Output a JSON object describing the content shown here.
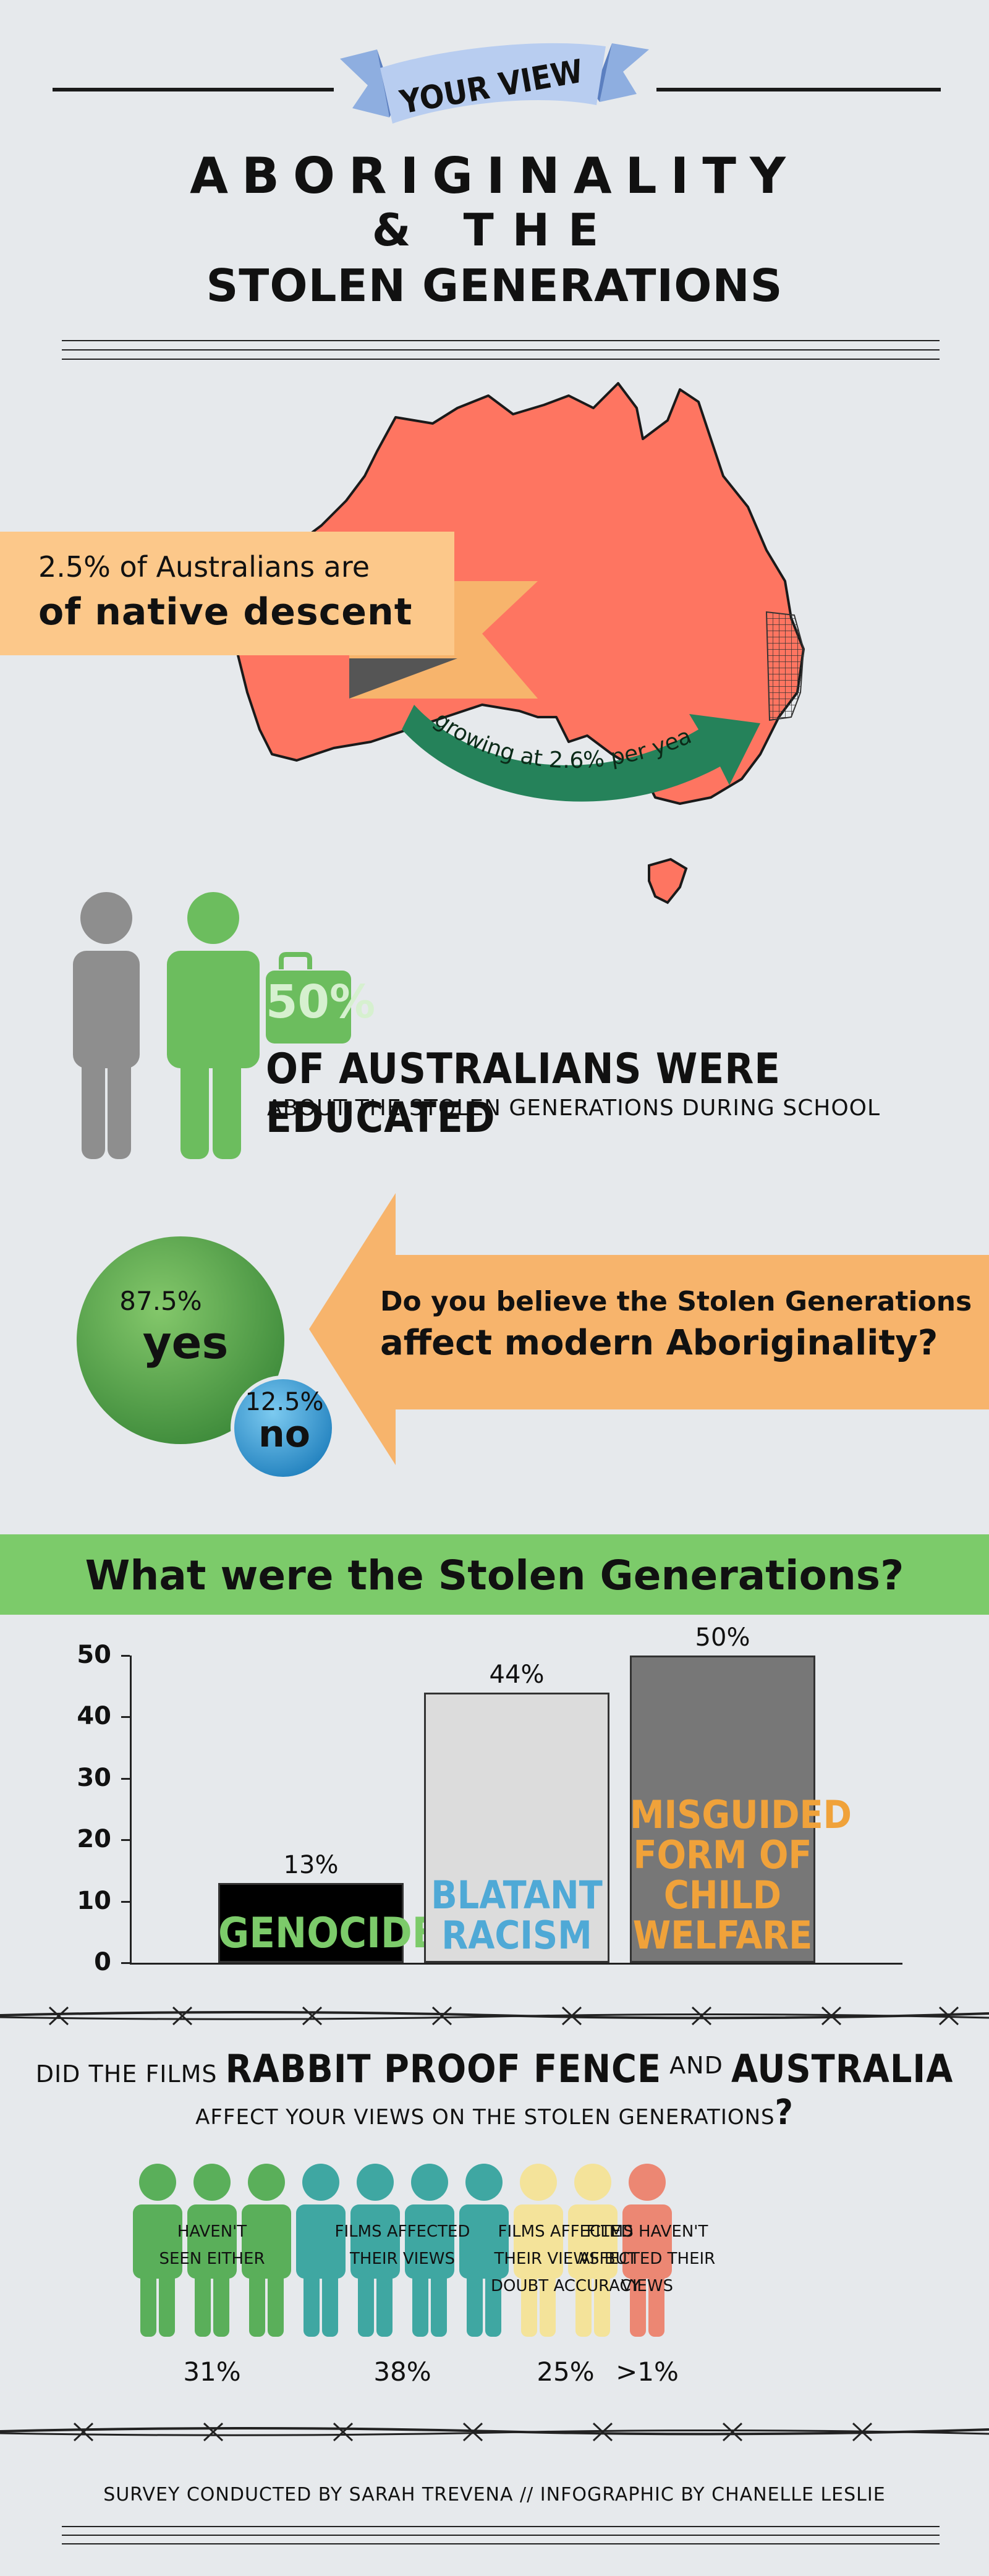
{
  "header": {
    "ribbon": "YOUR VIEW",
    "title_line1": "ABORIGINALITY",
    "title_line2": "& THE",
    "title_line3": "STOLEN GENERATIONS"
  },
  "native": {
    "small": "2.5% of Australians are",
    "big": "of native descent",
    "growth": "growing at 2.6% per year"
  },
  "education": {
    "percent": "50%",
    "line1": "OF AUSTRALIANS WERE EDUCATED",
    "line2": "ABOUT THE STOLEN GENERATIONS DURING SCHOOL"
  },
  "question": {
    "line1": "Do you believe the Stolen Generations",
    "line2": "affect modern Aboriginality?",
    "yes_pct": "87.5%",
    "yes_label": "yes",
    "no_pct": "12.5%",
    "no_label": "no"
  },
  "banner": "What were the Stolen Generations?",
  "chart_data": {
    "type": "bar",
    "categories": [
      "GENOCIDE",
      "BLATANT RACISM",
      "MISGUIDED FORM OF CHILD WELFARE"
    ],
    "values": [
      13,
      44,
      50
    ],
    "data_labels": [
      "13%",
      "44%",
      "50%"
    ],
    "category_lines": [
      [
        "GENOCIDE"
      ],
      [
        "BLATANT",
        "RACISM"
      ],
      [
        "MISGUIDED",
        "FORM OF",
        "CHILD",
        "WELFARE"
      ]
    ],
    "bar_colors": [
      "#000000",
      "#dcdcdc",
      "#777777"
    ],
    "text_colors": [
      "#7ccb6a",
      "#4fa9d6",
      "#f0a23a"
    ],
    "yticks": [
      0,
      10,
      20,
      30,
      40,
      50
    ],
    "ylim": [
      0,
      50
    ],
    "title": "",
    "xlabel": "",
    "ylabel": ""
  },
  "films": {
    "q_pre": "DID THE FILMS",
    "q_film1": "RABBIT PROOF FENCE",
    "q_and": "AND",
    "q_film2": "AUSTRALIA",
    "q_line2": "AFFECT YOUR VIEWS ON THE STOLEN GENERATIONS",
    "q_mark": "?",
    "groups": [
      {
        "label1": "HAVEN'T",
        "label2": "SEEN EITHER",
        "label3": "",
        "pct": "31%",
        "color": "#5aaf5a"
      },
      {
        "label1": "FILMS AFFECTED",
        "label2": "THEIR VIEWS",
        "label3": "",
        "pct": "38%",
        "color": "#3fa7a2"
      },
      {
        "label1": "FILMS AFFECTED",
        "label2": "THEIR VIEWS BUT",
        "label3": "DOUBT ACCURACY",
        "pct": "25%",
        "color": "#f4e39a"
      },
      {
        "label1": "FILMS HAVEN'T",
        "label2": "AFFECTED THEIR",
        "label3": "VIEWS",
        "pct": ">1%",
        "color": "#ec8773"
      }
    ]
  },
  "credit": "SURVEY CONDUCTED BY SARAH TREVENA // INFOGRAPHIC BY CHANELLE LESLIE",
  "colors": {
    "background": "#e6e9ec",
    "map": "#fe7561",
    "green": "#7ccb6a",
    "orange": "#f7b46c",
    "blue": "#4fa9d6"
  }
}
